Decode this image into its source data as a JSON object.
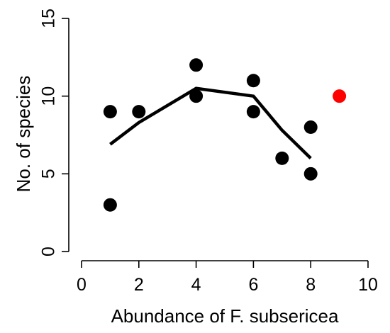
{
  "chart_data": {
    "type": "scatter",
    "title": "",
    "xlabel": "Abundance of F. subsericea",
    "ylabel": "No. of species",
    "xlim": [
      0,
      10
    ],
    "ylim": [
      0,
      15
    ],
    "x_ticks": [
      0,
      2,
      4,
      6,
      8,
      10
    ],
    "y_ticks": [
      0,
      5,
      10,
      15
    ],
    "x_tick_labels": [
      "0",
      "2",
      "4",
      "6",
      "8",
      "10"
    ],
    "y_tick_labels": [
      "0",
      "5",
      "10",
      "15"
    ],
    "grid": false,
    "legend": "none",
    "series": [
      {
        "type": "scatter",
        "color": "#000000",
        "points": [
          {
            "x": 1,
            "y": 9
          },
          {
            "x": 1,
            "y": 3
          },
          {
            "x": 2,
            "y": 9
          },
          {
            "x": 4,
            "y": 12
          },
          {
            "x": 4,
            "y": 10
          },
          {
            "x": 6,
            "y": 11
          },
          {
            "x": 6,
            "y": 9
          },
          {
            "x": 7,
            "y": 6
          },
          {
            "x": 8,
            "y": 8
          },
          {
            "x": 8,
            "y": 5
          }
        ]
      },
      {
        "type": "scatter",
        "color": "#ff0000",
        "points": [
          {
            "x": 9,
            "y": 10
          }
        ]
      },
      {
        "type": "line",
        "color": "#000000",
        "points": [
          {
            "x": 1,
            "y": 6.9
          },
          {
            "x": 2,
            "y": 8.3
          },
          {
            "x": 4,
            "y": 10.5
          },
          {
            "x": 6,
            "y": 10.0
          },
          {
            "x": 7,
            "y": 7.8
          },
          {
            "x": 8,
            "y": 6.0
          }
        ]
      }
    ]
  }
}
